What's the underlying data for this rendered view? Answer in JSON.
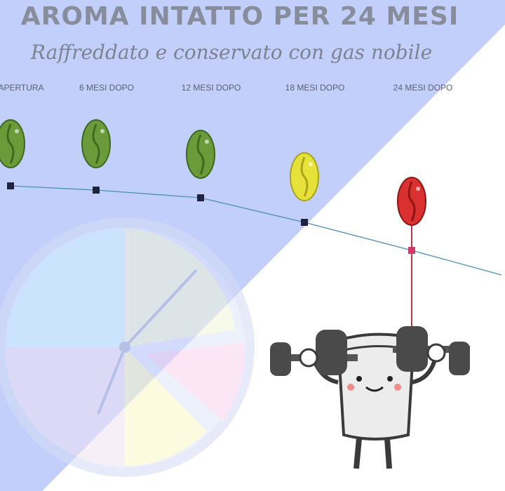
{
  "header": {
    "title": "AROMA INTATTO PER 24 MESI",
    "subtitle": "Raffreddato e conservato con gas nobile"
  },
  "timeline": {
    "labels": [
      "APERTURA",
      "6 MESI DOPO",
      "12 MESI DOPO",
      "18 MESI DOPO",
      "24 MESI DOPO"
    ]
  }
}
